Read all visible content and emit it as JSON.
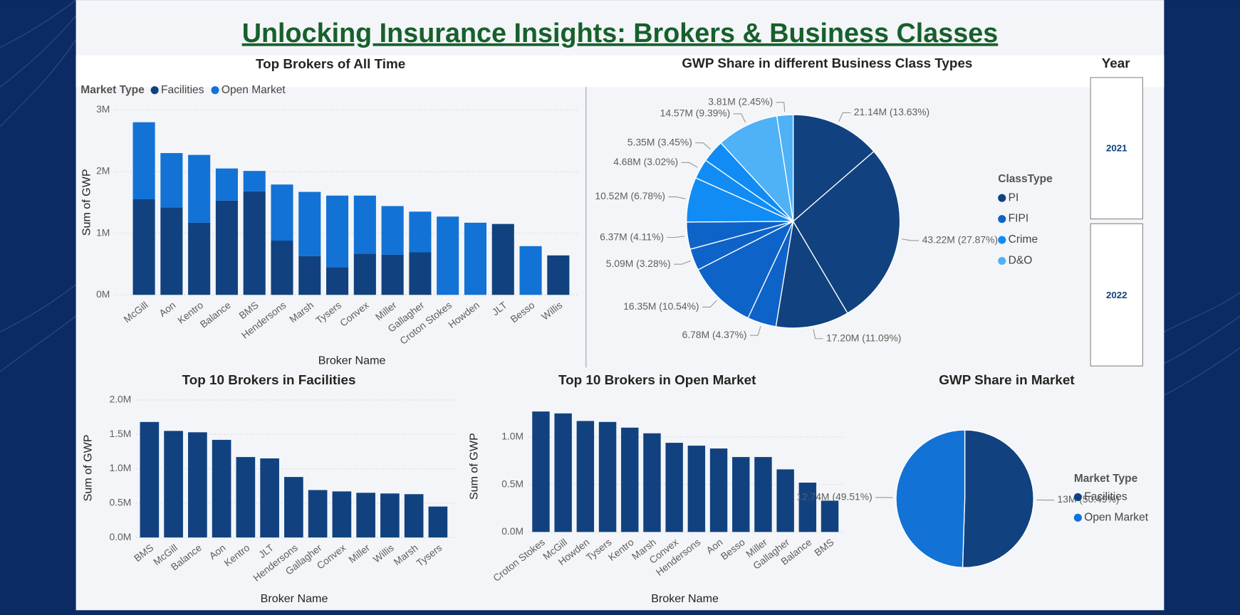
{
  "title": "Unlocking Insurance Insights: Brokers & Business Classes",
  "slicer": {
    "title": "Year",
    "items": [
      "2021",
      "2022"
    ]
  },
  "chart_data": [
    {
      "type": "bar",
      "stacked": true,
      "title": "Top Brokers of All Time",
      "x_label": "Broker Name",
      "y_label": "Sum of GWP",
      "legend_title": "Market Type",
      "categories": [
        "McGill",
        "Aon",
        "Kentro",
        "Balance",
        "BMS",
        "Hendersons",
        "Marsh",
        "Tysers",
        "Convex",
        "Miller",
        "Gallagher",
        "Croton Stokes",
        "Howden",
        "JLT",
        "Besso",
        "Willis"
      ],
      "series": [
        {
          "name": "Facilities",
          "color": "#11427f",
          "values": [
            1.55,
            1.42,
            1.17,
            1.53,
            1.68,
            0.88,
            0.63,
            0.45,
            0.67,
            0.65,
            0.69,
            0,
            0,
            1.15,
            0,
            0.64
          ]
        },
        {
          "name": "Open Market",
          "color": "#1272d6",
          "values": [
            1.25,
            0.88,
            1.1,
            0.52,
            0.33,
            0.91,
            1.04,
            1.16,
            0.94,
            0.79,
            0.66,
            1.27,
            1.17,
            0,
            0.79,
            0
          ]
        }
      ],
      "ylim": [
        0,
        3
      ],
      "yticks": [
        {
          "value": 0,
          "label": "0M"
        },
        {
          "value": 1,
          "label": "1M"
        },
        {
          "value": 2,
          "label": "2M"
        },
        {
          "value": 3,
          "label": "3M"
        }
      ],
      "grid": true
    },
    {
      "type": "pie",
      "title": "GWP Share in different Business Class Types",
      "legend_title": "ClassType",
      "series": [
        {
          "name": "PI",
          "color": "#11427f",
          "values": [
            21.14,
            43.22,
            17.2
          ],
          "value_labels": [
            "21.14M (13.63%)",
            "43.22M (27.87%)",
            "17.20M (11.09%)"
          ]
        },
        {
          "name": "FIPI",
          "color": "#0e63c9",
          "values": [
            6.78,
            16.35,
            5.09,
            6.37
          ],
          "value_labels": [
            "6.78M (4.37%)",
            "16.35M (10.54%)",
            "5.09M (3.28%)",
            "6.37M (4.11%)"
          ]
        },
        {
          "name": "Crime",
          "color": "#118cf5",
          "values": [
            10.52,
            4.68,
            5.35
          ],
          "value_labels": [
            "10.52M (6.78%)",
            "4.68M (3.02%)",
            "5.35M (3.45%)"
          ]
        },
        {
          "name": "D&O",
          "color": "#4fb1f6",
          "values": [
            14.57,
            3.81
          ],
          "value_labels": [
            "14.57M (9.39%)",
            "3.81M (2.45%)"
          ]
        }
      ]
    },
    {
      "type": "bar",
      "title": "Top 10 Brokers in Facilities",
      "x_label": "Broker Name",
      "y_label": "Sum of GWP",
      "color": "#11427f",
      "categories": [
        "BMS",
        "McGill",
        "Balance",
        "Aon",
        "Kentro",
        "JLT",
        "Hendersons",
        "Gallagher",
        "Convex",
        "Miller",
        "Willis",
        "Marsh",
        "Tysers"
      ],
      "values": [
        1.68,
        1.55,
        1.53,
        1.42,
        1.17,
        1.15,
        0.88,
        0.69,
        0.67,
        0.65,
        0.64,
        0.63,
        0.45
      ],
      "ylim": [
        0,
        2
      ],
      "yticks": [
        {
          "value": 0,
          "label": "0.0M"
        },
        {
          "value": 0.5,
          "label": "0.5M"
        },
        {
          "value": 1,
          "label": "1.0M"
        },
        {
          "value": 1.5,
          "label": "1.5M"
        },
        {
          "value": 2,
          "label": "2.0M"
        }
      ],
      "grid": true
    },
    {
      "type": "bar",
      "title": "Top 10 Brokers in Open Market",
      "x_label": "Broker Name",
      "y_label": "Sum of GWP",
      "color": "#11427f",
      "categories": [
        "Croton Stokes",
        "McGill",
        "Howden",
        "Tysers",
        "Kentro",
        "Marsh",
        "Convex",
        "Hendersons",
        "Aon",
        "Besso",
        "Miller",
        "Gallagher",
        "Balance",
        "BMS"
      ],
      "values": [
        1.27,
        1.25,
        1.17,
        1.16,
        1.1,
        1.04,
        0.94,
        0.91,
        0.88,
        0.79,
        0.79,
        0.66,
        0.52,
        0.33
      ],
      "ylim": [
        0,
        1.3
      ],
      "yticks": [
        {
          "value": 0,
          "label": "0.0M"
        },
        {
          "value": 0.5,
          "label": "0.5M"
        },
        {
          "value": 1,
          "label": "1.0M"
        }
      ],
      "grid": true
    },
    {
      "type": "pie",
      "title": "GWP Share in Market",
      "legend_title": "Market Type",
      "series": [
        {
          "name": "Facilities",
          "color": "#11427f",
          "values": [
            13
          ],
          "value_labels": [
            "13M (50.49%)"
          ]
        },
        {
          "name": "Open Market",
          "color": "#1272d6",
          "values": [
            12.74
          ],
          "value_labels": [
            "12.74M (49.51%)"
          ]
        }
      ]
    }
  ]
}
